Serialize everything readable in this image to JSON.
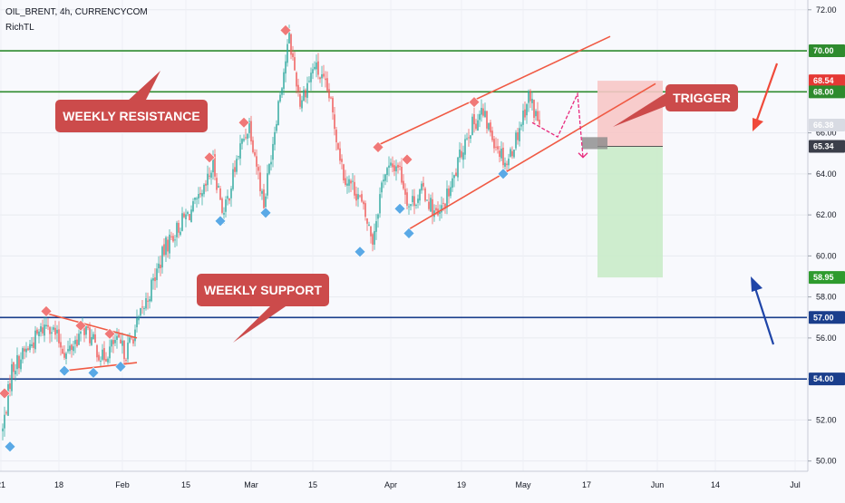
{
  "header": {
    "symbol_line": "OIL_BRENT, 4h, CURRENCYCOM",
    "indicator": "RichTL"
  },
  "colors": {
    "bull": "#26a69a",
    "bear": "#ef5350",
    "resistance_line": "#2e8b2e",
    "support_line": "#1a3e8c",
    "annotation_box": "#cc4b4b",
    "trendline": "#f05a44",
    "arrow_up": "#1f45a8",
    "arrow_down": "#f04a3a",
    "projection": "#e8287c",
    "stop_zone": "#f7c6c6",
    "target_zone": "#c9ebc9"
  },
  "chart_data": {
    "type": "candlestick",
    "ylim": [
      49.5,
      72.3
    ],
    "y_ticks": [
      "50.00",
      "52.00",
      "54.00",
      "56.00",
      "58.00",
      "60.00",
      "62.00",
      "64.00",
      "66.00",
      "72.00"
    ],
    "x_ticks": [
      "21",
      "18",
      "Feb",
      "15",
      "Mar",
      "15",
      "Apr",
      "19",
      "May",
      "17",
      "Jun",
      "14",
      "Jul"
    ],
    "price_badges": [
      {
        "label": "70.00",
        "value": 70.0,
        "kind": "resistance"
      },
      {
        "label": "68.54",
        "value": 68.54,
        "kind": "stop"
      },
      {
        "label": "68.00",
        "value": 68.0,
        "kind": "resistance"
      },
      {
        "label": "66.38",
        "value": 66.38,
        "kind": "last"
      },
      {
        "label": "65.34",
        "value": 65.34,
        "kind": "entry"
      },
      {
        "label": "58.95",
        "value": 58.95,
        "kind": "target"
      },
      {
        "label": "57.00",
        "value": 57.0,
        "kind": "support"
      },
      {
        "label": "54.00",
        "value": 54.0,
        "kind": "support"
      }
    ],
    "horizontal_levels": [
      {
        "value": 70.0,
        "kind": "resistance"
      },
      {
        "value": 68.0,
        "kind": "resistance"
      },
      {
        "value": 57.0,
        "kind": "support"
      },
      {
        "value": 54.0,
        "kind": "support"
      }
    ],
    "price_path": [
      {
        "bar": 0,
        "price": 51.5
      },
      {
        "bar": 5,
        "price": 54.5
      },
      {
        "bar": 14,
        "price": 55.5
      },
      {
        "bar": 25,
        "price": 56.8
      },
      {
        "bar": 35,
        "price": 55.2
      },
      {
        "bar": 45,
        "price": 56.5
      },
      {
        "bar": 55,
        "price": 55.0
      },
      {
        "bar": 62,
        "price": 55.8
      },
      {
        "bar": 68,
        "price": 55.3
      },
      {
        "bar": 74,
        "price": 56.6
      },
      {
        "bar": 80,
        "price": 58.0
      },
      {
        "bar": 90,
        "price": 60.5
      },
      {
        "bar": 100,
        "price": 61.8
      },
      {
        "bar": 110,
        "price": 62.8
      },
      {
        "bar": 116,
        "price": 64.5
      },
      {
        "bar": 122,
        "price": 62.0
      },
      {
        "bar": 130,
        "price": 65.0
      },
      {
        "bar": 136,
        "price": 66.5
      },
      {
        "bar": 144,
        "price": 62.5
      },
      {
        "bar": 152,
        "price": 67.5
      },
      {
        "bar": 158,
        "price": 70.6
      },
      {
        "bar": 164,
        "price": 67.5
      },
      {
        "bar": 172,
        "price": 69.3
      },
      {
        "bar": 180,
        "price": 67.8
      },
      {
        "bar": 188,
        "price": 64.0
      },
      {
        "bar": 196,
        "price": 63.0
      },
      {
        "bar": 204,
        "price": 60.8
      },
      {
        "bar": 210,
        "price": 64.0
      },
      {
        "bar": 218,
        "price": 64.5
      },
      {
        "bar": 224,
        "price": 62.5
      },
      {
        "bar": 232,
        "price": 63.2
      },
      {
        "bar": 240,
        "price": 61.8
      },
      {
        "bar": 248,
        "price": 63.5
      },
      {
        "bar": 256,
        "price": 66.0
      },
      {
        "bar": 264,
        "price": 67.0
      },
      {
        "bar": 272,
        "price": 65.5
      },
      {
        "bar": 278,
        "price": 64.5
      },
      {
        "bar": 284,
        "price": 66.0
      },
      {
        "bar": 290,
        "price": 67.8
      },
      {
        "bar": 296,
        "price": 66.4
      }
    ],
    "markers": [
      {
        "bar": 1,
        "price": 53.3,
        "kind": "high"
      },
      {
        "bar": 4,
        "price": 50.7,
        "kind": "low"
      },
      {
        "bar": 24,
        "price": 57.3,
        "kind": "high"
      },
      {
        "bar": 34,
        "price": 54.4,
        "kind": "low"
      },
      {
        "bar": 43,
        "price": 56.6,
        "kind": "high"
      },
      {
        "bar": 50,
        "price": 54.3,
        "kind": "low"
      },
      {
        "bar": 59,
        "price": 56.2,
        "kind": "high"
      },
      {
        "bar": 65,
        "price": 54.6,
        "kind": "low"
      },
      {
        "bar": 114,
        "price": 64.8,
        "kind": "high"
      },
      {
        "bar": 120,
        "price": 61.7,
        "kind": "low"
      },
      {
        "bar": 133,
        "price": 66.5,
        "kind": "high"
      },
      {
        "bar": 145,
        "price": 62.1,
        "kind": "low"
      },
      {
        "bar": 156,
        "price": 71.0,
        "kind": "high"
      },
      {
        "bar": 197,
        "price": 60.2,
        "kind": "low"
      },
      {
        "bar": 207,
        "price": 65.3,
        "kind": "high"
      },
      {
        "bar": 219,
        "price": 62.3,
        "kind": "low"
      },
      {
        "bar": 223,
        "price": 64.7,
        "kind": "high"
      },
      {
        "bar": 224,
        "price": 61.1,
        "kind": "low"
      },
      {
        "bar": 260,
        "price": 67.5,
        "kind": "high"
      },
      {
        "bar": 276,
        "price": 64.0,
        "kind": "low"
      }
    ],
    "trendlines": [
      {
        "from": [
          24,
          57.2
        ],
        "to": [
          74,
          56.0
        ]
      },
      {
        "from": [
          34,
          54.4
        ],
        "to": [
          74,
          54.8
        ]
      },
      {
        "from": [
          207,
          65.4
        ],
        "to": [
          335,
          70.7
        ]
      },
      {
        "from": [
          224,
          61.3
        ],
        "to": [
          360,
          68.4
        ]
      }
    ],
    "position": {
      "entry": 65.34,
      "stop": 68.54,
      "target": 58.95,
      "start_bar": 328,
      "end_bar": 364
    },
    "projection_path": [
      {
        "bar": 292,
        "price": 66.5
      },
      {
        "bar": 306,
        "price": 65.8
      },
      {
        "bar": 317,
        "price": 67.9
      },
      {
        "bar": 320,
        "price": 64.8
      }
    ],
    "annotations": {
      "weekly_resistance": "WEEKLY RESISTANCE",
      "weekly_support": "WEEKLY SUPPORT",
      "trigger": "TRIGGER"
    }
  }
}
